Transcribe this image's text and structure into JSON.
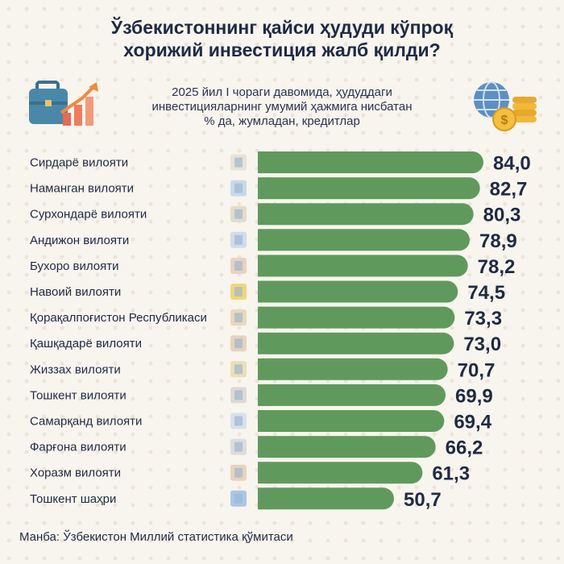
{
  "header": {
    "title_line1": "Ўзбекистоннинг қайси ҳудуди кўпроқ",
    "title_line2": "хорижий инвестиция жалб қилди?",
    "subtitle_line1": "2025 йил I чораги давомида, ҳудуддаги",
    "subtitle_line2": "инвестицияларнинг умумий ҳажмига нисбатан",
    "subtitle_line3": "% да, жумладан, кредитлар"
  },
  "footer": {
    "source": "Манба: Ўзбекистон Миллий статистика қўмитаси"
  },
  "colors": {
    "bar": "#5f9a5c",
    "background": "#f8f4ee",
    "text": "#1f2a44"
  },
  "chart_data": {
    "type": "bar",
    "orientation": "horizontal",
    "categories": [
      "Сирдарё вилояти",
      "Наманган вилояти",
      "Сурхондарё вилояти",
      "Андижон вилояти",
      "Бухоро вилояти",
      "Навоий вилояти",
      "Қорақалпоғистон Республикаси",
      "Қашқадарё вилояти",
      "Жиззах вилояти",
      "Тошкент вилояти",
      "Самарқанд вилояти",
      "Фарғона вилояти",
      "Хоразм вилояти",
      "Тошкент шаҳри"
    ],
    "values": [
      84.0,
      82.7,
      80.3,
      78.9,
      78.2,
      74.5,
      73.3,
      73.0,
      70.7,
      69.9,
      69.4,
      66.2,
      61.3,
      50.7
    ],
    "value_labels": [
      "84,0",
      "82,7",
      "80,3",
      "78,9",
      "78,2",
      "74,5",
      "73,3",
      "73,0",
      "70,7",
      "69,9",
      "69,4",
      "66,2",
      "61,3",
      "50,7"
    ],
    "icons": [
      "cotton-field-icon",
      "spool-icon",
      "grapes-icon",
      "car-icon",
      "minaret-icon",
      "gold-bars-icon",
      "museum-icon",
      "tower-icon",
      "wheat-icon",
      "factory-icon",
      "registan-icon",
      "factory-icon",
      "fortress-icon",
      "skyscraper-icon"
    ],
    "grid": false,
    "legend": "none"
  }
}
